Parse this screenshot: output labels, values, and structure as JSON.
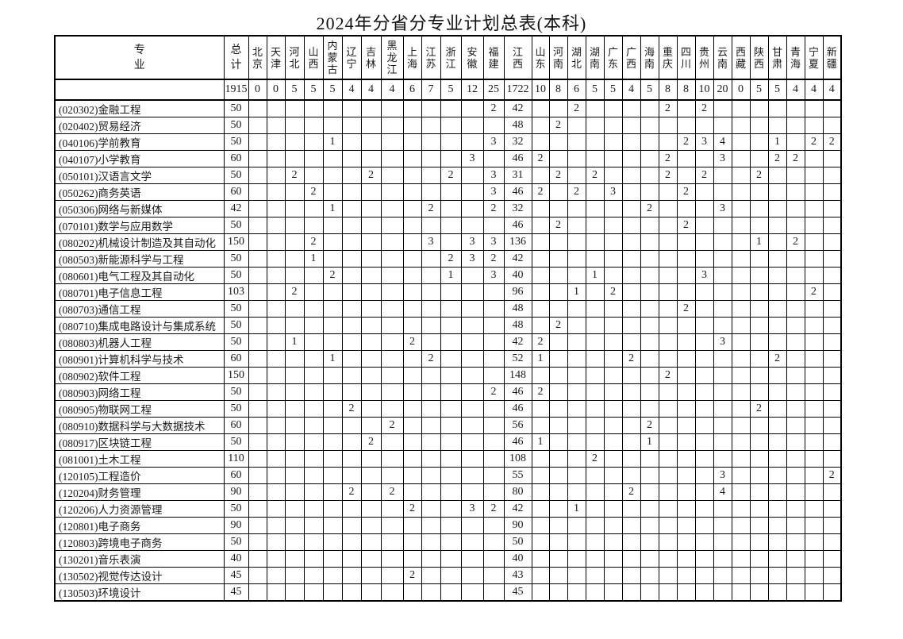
{
  "title": "2024年分省分专业计划总表(本科)",
  "table": {
    "major_header": "专业",
    "total_header": "总计",
    "provinces": [
      "北京",
      "天津",
      "河北",
      "山西",
      "内蒙古",
      "辽宁",
      "吉林",
      "黑龙江",
      "上海",
      "江苏",
      "浙江",
      "安徽",
      "福建",
      "江西",
      "山东",
      "河南",
      "湖北",
      "湖南",
      "广东",
      "广西",
      "海南",
      "重庆",
      "四川",
      "贵州",
      "云南",
      "西藏",
      "陕西",
      "甘肃",
      "青海",
      "宁夏",
      "新疆"
    ],
    "totals": {
      "total": "1915",
      "values": [
        "0",
        "0",
        "5",
        "5",
        "5",
        "4",
        "4",
        "4",
        "6",
        "7",
        "5",
        "12",
        "25",
        "1722",
        "10",
        "8",
        "6",
        "5",
        "5",
        "4",
        "5",
        "8",
        "8",
        "10",
        "20",
        "0",
        "5",
        "5",
        "4",
        "4",
        "4"
      ]
    },
    "rows": [
      {
        "name": "(020302)金融工程",
        "total": "50",
        "values": [
          "",
          "",
          "",
          "",
          "",
          "",
          "",
          "",
          "",
          "",
          "",
          "",
          "2",
          "42",
          "",
          "",
          "2",
          "",
          "",
          "",
          "",
          "2",
          "",
          "2",
          "",
          "",
          "",
          "",
          "",
          "",
          ""
        ]
      },
      {
        "name": "(020402)贸易经济",
        "total": "50",
        "values": [
          "",
          "",
          "",
          "",
          "",
          "",
          "",
          "",
          "",
          "",
          "",
          "",
          "",
          "48",
          "",
          "2",
          "",
          "",
          "",
          "",
          "",
          "",
          "",
          "",
          "",
          "",
          "",
          "",
          "",
          "",
          ""
        ]
      },
      {
        "name": "(040106)学前教育",
        "total": "50",
        "values": [
          "",
          "",
          "",
          "",
          "1",
          "",
          "",
          "",
          "",
          "",
          "",
          "",
          "3",
          "32",
          "",
          "",
          "",
          "",
          "",
          "",
          "",
          "",
          "2",
          "3",
          "4",
          "",
          "",
          "1",
          "",
          "2",
          "2"
        ]
      },
      {
        "name": "(040107)小学教育",
        "total": "60",
        "values": [
          "",
          "",
          "",
          "",
          "",
          "",
          "",
          "",
          "",
          "",
          "",
          "3",
          "",
          "46",
          "2",
          "",
          "",
          "",
          "",
          "",
          "",
          "2",
          "",
          "",
          "3",
          "",
          "",
          "2",
          "2",
          "",
          ""
        ]
      },
      {
        "name": "(050101)汉语言文学",
        "total": "50",
        "values": [
          "",
          "",
          "2",
          "",
          "",
          "",
          "2",
          "",
          "",
          "",
          "2",
          "",
          "3",
          "31",
          "",
          "2",
          "",
          "2",
          "",
          "",
          "",
          "2",
          "",
          "2",
          "",
          "",
          "2",
          "",
          "",
          "",
          ""
        ]
      },
      {
        "name": "(050262)商务英语",
        "total": "60",
        "values": [
          "",
          "",
          "",
          "2",
          "",
          "",
          "",
          "",
          "",
          "",
          "",
          "",
          "3",
          "46",
          "2",
          "",
          "2",
          "",
          "3",
          "",
          "",
          "",
          "2",
          "",
          "",
          "",
          "",
          "",
          "",
          "",
          ""
        ]
      },
      {
        "name": "(050306)网络与新媒体",
        "total": "42",
        "values": [
          "",
          "",
          "",
          "",
          "1",
          "",
          "",
          "",
          "",
          "2",
          "",
          "",
          "2",
          "32",
          "",
          "",
          "",
          "",
          "",
          "",
          "2",
          "",
          "",
          "",
          "3",
          "",
          "",
          "",
          "",
          "",
          ""
        ]
      },
      {
        "name": "(070101)数学与应用数学",
        "total": "50",
        "values": [
          "",
          "",
          "",
          "",
          "",
          "",
          "",
          "",
          "",
          "",
          "",
          "",
          "",
          "46",
          "",
          "2",
          "",
          "",
          "",
          "",
          "",
          "",
          "2",
          "",
          "",
          "",
          "",
          "",
          "",
          "",
          ""
        ]
      },
      {
        "name": "(080202)机械设计制造及其自动化",
        "total": "150",
        "values": [
          "",
          "",
          "",
          "2",
          "",
          "",
          "",
          "",
          "",
          "3",
          "",
          "3",
          "3",
          "136",
          "",
          "",
          "",
          "",
          "",
          "",
          "",
          "",
          "",
          "",
          "",
          "",
          "1",
          "",
          "2",
          "",
          ""
        ]
      },
      {
        "name": "(080503)新能源科学与工程",
        "total": "50",
        "values": [
          "",
          "",
          "",
          "1",
          "",
          "",
          "",
          "",
          "",
          "",
          "2",
          "3",
          "2",
          "42",
          "",
          "",
          "",
          "",
          "",
          "",
          "",
          "",
          "",
          "",
          "",
          "",
          "",
          "",
          "",
          "",
          ""
        ]
      },
      {
        "name": "(080601)电气工程及其自动化",
        "total": "50",
        "values": [
          "",
          "",
          "",
          "",
          "2",
          "",
          "",
          "",
          "",
          "",
          "1",
          "",
          "3",
          "40",
          "",
          "",
          "",
          "1",
          "",
          "",
          "",
          "",
          "",
          "3",
          "",
          "",
          "",
          "",
          "",
          "",
          ""
        ]
      },
      {
        "name": "(080701)电子信息工程",
        "total": "103",
        "values": [
          "",
          "",
          "2",
          "",
          "",
          "",
          "",
          "",
          "",
          "",
          "",
          "",
          "",
          "96",
          "",
          "",
          "1",
          "",
          "2",
          "",
          "",
          "",
          "",
          "",
          "",
          "",
          "",
          "",
          "",
          "2",
          ""
        ]
      },
      {
        "name": "(080703)通信工程",
        "total": "50",
        "values": [
          "",
          "",
          "",
          "",
          "",
          "",
          "",
          "",
          "",
          "",
          "",
          "",
          "",
          "48",
          "",
          "",
          "",
          "",
          "",
          "",
          "",
          "",
          "2",
          "",
          "",
          "",
          "",
          "",
          "",
          "",
          ""
        ]
      },
      {
        "name": "(080710)集成电路设计与集成系统",
        "total": "50",
        "values": [
          "",
          "",
          "",
          "",
          "",
          "",
          "",
          "",
          "",
          "",
          "",
          "",
          "",
          "48",
          "",
          "2",
          "",
          "",
          "",
          "",
          "",
          "",
          "",
          "",
          "",
          "",
          "",
          "",
          "",
          "",
          ""
        ]
      },
      {
        "name": "(080803)机器人工程",
        "total": "50",
        "values": [
          "",
          "",
          "1",
          "",
          "",
          "",
          "",
          "",
          "2",
          "",
          "",
          "",
          "",
          "42",
          "2",
          "",
          "",
          "",
          "",
          "",
          "",
          "",
          "",
          "",
          "3",
          "",
          "",
          "",
          "",
          "",
          ""
        ]
      },
      {
        "name": "(080901)计算机科学与技术",
        "total": "60",
        "values": [
          "",
          "",
          "",
          "",
          "1",
          "",
          "",
          "",
          "",
          "2",
          "",
          "",
          "",
          "52",
          "1",
          "",
          "",
          "",
          "",
          "2",
          "",
          "",
          "",
          "",
          "",
          "",
          "",
          "2",
          "",
          "",
          ""
        ]
      },
      {
        "name": "(080902)软件工程",
        "total": "150",
        "values": [
          "",
          "",
          "",
          "",
          "",
          "",
          "",
          "",
          "",
          "",
          "",
          "",
          "",
          "148",
          "",
          "",
          "",
          "",
          "",
          "",
          "",
          "2",
          "",
          "",
          "",
          "",
          "",
          "",
          "",
          "",
          ""
        ]
      },
      {
        "name": "(080903)网络工程",
        "total": "50",
        "values": [
          "",
          "",
          "",
          "",
          "",
          "",
          "",
          "",
          "",
          "",
          "",
          "",
          "2",
          "46",
          "2",
          "",
          "",
          "",
          "",
          "",
          "",
          "",
          "",
          "",
          "",
          "",
          "",
          "",
          "",
          "",
          ""
        ]
      },
      {
        "name": "(080905)物联网工程",
        "total": "50",
        "values": [
          "",
          "",
          "",
          "",
          "",
          "2",
          "",
          "",
          "",
          "",
          "",
          "",
          "",
          "46",
          "",
          "",
          "",
          "",
          "",
          "",
          "",
          "",
          "",
          "",
          "",
          "",
          "2",
          "",
          "",
          "",
          ""
        ]
      },
      {
        "name": "(080910)数据科学与大数据技术",
        "total": "60",
        "values": [
          "",
          "",
          "",
          "",
          "",
          "",
          "",
          "2",
          "",
          "",
          "",
          "",
          "",
          "56",
          "",
          "",
          "",
          "",
          "",
          "",
          "2",
          "",
          "",
          "",
          "",
          "",
          "",
          "",
          "",
          "",
          ""
        ]
      },
      {
        "name": "(080917)区块链工程",
        "total": "50",
        "values": [
          "",
          "",
          "",
          "",
          "",
          "",
          "2",
          "",
          "",
          "",
          "",
          "",
          "",
          "46",
          "1",
          "",
          "",
          "",
          "",
          "",
          "1",
          "",
          "",
          "",
          "",
          "",
          "",
          "",
          "",
          "",
          ""
        ]
      },
      {
        "name": "(081001)土木工程",
        "total": "110",
        "values": [
          "",
          "",
          "",
          "",
          "",
          "",
          "",
          "",
          "",
          "",
          "",
          "",
          "",
          "108",
          "",
          "",
          "",
          "2",
          "",
          "",
          "",
          "",
          "",
          "",
          "",
          "",
          "",
          "",
          "",
          "",
          ""
        ]
      },
      {
        "name": "(120105)工程造价",
        "total": "60",
        "values": [
          "",
          "",
          "",
          "",
          "",
          "",
          "",
          "",
          "",
          "",
          "",
          "",
          "",
          "55",
          "",
          "",
          "",
          "",
          "",
          "",
          "",
          "",
          "",
          "",
          "3",
          "",
          "",
          "",
          "",
          "",
          "2"
        ]
      },
      {
        "name": "(120204)财务管理",
        "total": "90",
        "values": [
          "",
          "",
          "",
          "",
          "",
          "2",
          "",
          "2",
          "",
          "",
          "",
          "",
          "",
          "80",
          "",
          "",
          "",
          "",
          "",
          "2",
          "",
          "",
          "",
          "",
          "4",
          "",
          "",
          "",
          "",
          "",
          ""
        ]
      },
      {
        "name": "(120206)人力资源管理",
        "total": "50",
        "values": [
          "",
          "",
          "",
          "",
          "",
          "",
          "",
          "",
          "2",
          "",
          "",
          "3",
          "2",
          "42",
          "",
          "",
          "1",
          "",
          "",
          "",
          "",
          "",
          "",
          "",
          "",
          "",
          "",
          "",
          "",
          "",
          ""
        ]
      },
      {
        "name": "(120801)电子商务",
        "total": "90",
        "values": [
          "",
          "",
          "",
          "",
          "",
          "",
          "",
          "",
          "",
          "",
          "",
          "",
          "",
          "90",
          "",
          "",
          "",
          "",
          "",
          "",
          "",
          "",
          "",
          "",
          "",
          "",
          "",
          "",
          "",
          "",
          ""
        ]
      },
      {
        "name": "(120803)跨境电子商务",
        "total": "50",
        "values": [
          "",
          "",
          "",
          "",
          "",
          "",
          "",
          "",
          "",
          "",
          "",
          "",
          "",
          "50",
          "",
          "",
          "",
          "",
          "",
          "",
          "",
          "",
          "",
          "",
          "",
          "",
          "",
          "",
          "",
          "",
          ""
        ]
      },
      {
        "name": "(130201)音乐表演",
        "total": "40",
        "values": [
          "",
          "",
          "",
          "",
          "",
          "",
          "",
          "",
          "",
          "",
          "",
          "",
          "",
          "40",
          "",
          "",
          "",
          "",
          "",
          "",
          "",
          "",
          "",
          "",
          "",
          "",
          "",
          "",
          "",
          "",
          ""
        ]
      },
      {
        "name": "(130502)视觉传达设计",
        "total": "45",
        "values": [
          "",
          "",
          "",
          "",
          "",
          "",
          "",
          "",
          "2",
          "",
          "",
          "",
          "",
          "43",
          "",
          "",
          "",
          "",
          "",
          "",
          "",
          "",
          "",
          "",
          "",
          "",
          "",
          "",
          "",
          "",
          ""
        ]
      },
      {
        "name": "(130503)环境设计",
        "total": "45",
        "values": [
          "",
          "",
          "",
          "",
          "",
          "",
          "",
          "",
          "",
          "",
          "",
          "",
          "",
          "45",
          "",
          "",
          "",
          "",
          "",
          "",
          "",
          "",
          "",
          "",
          "",
          "",
          "",
          "",
          "",
          "",
          ""
        ]
      }
    ]
  }
}
